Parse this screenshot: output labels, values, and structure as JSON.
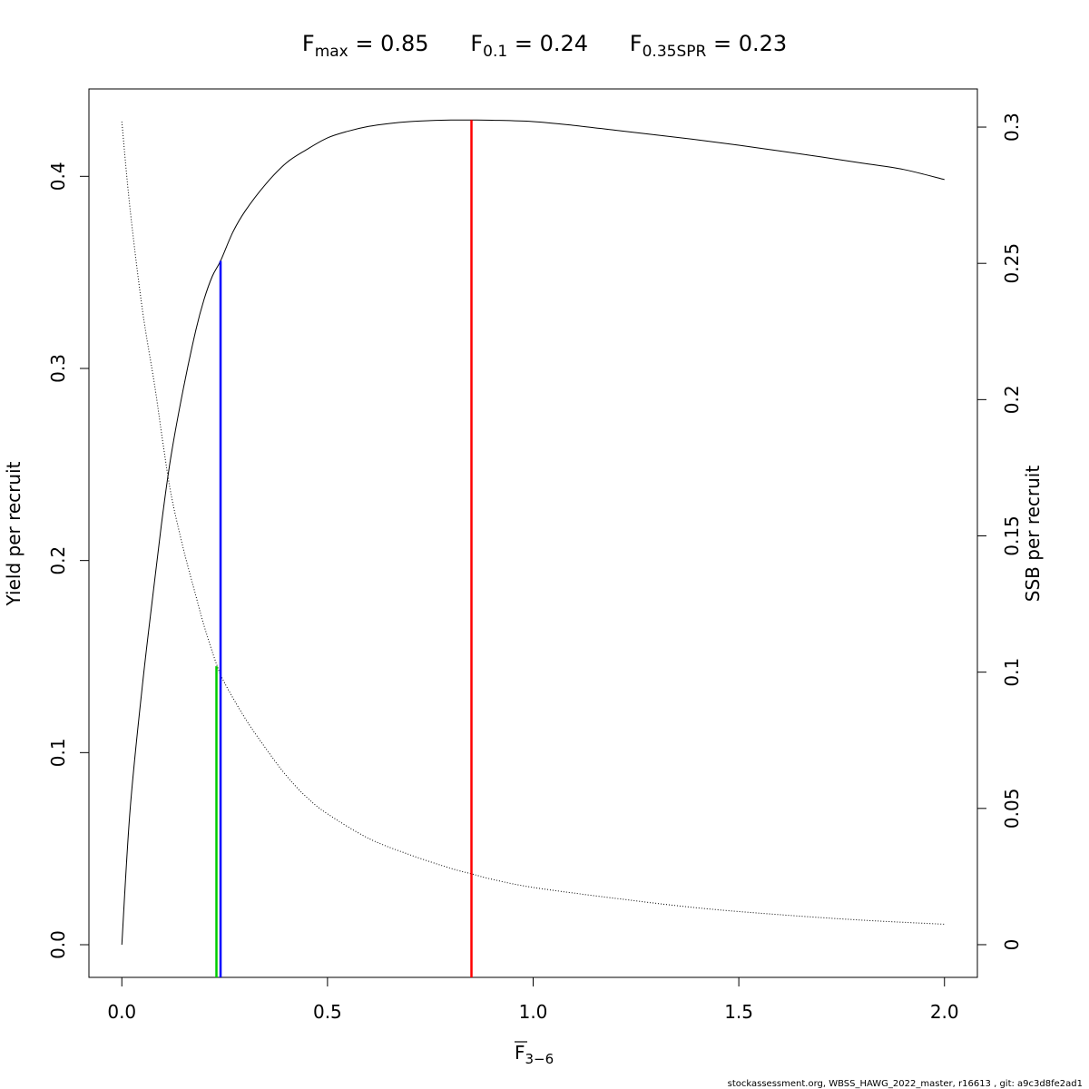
{
  "chart_data": {
    "type": "line",
    "title": {
      "fmax": {
        "symbol": "F",
        "sub": "max",
        "value": "0.85"
      },
      "f01": {
        "symbol": "F",
        "sub": "0.1",
        "value": "0.24"
      },
      "fspr": {
        "symbol": "F",
        "sub": "0.35SPR",
        "value": "0.23"
      }
    },
    "xlabel": {
      "symbol": "F",
      "sub": "3−6"
    },
    "ylabel_left": "Yield per recruit",
    "ylabel_right": "SSB per recruit",
    "xlim": [
      -0.08,
      2.08
    ],
    "ylim_left": [
      -0.017,
      0.4455
    ],
    "ylim_right": [
      -0.012,
      0.314
    ],
    "x_ticks": [
      "0.0",
      "0.5",
      "1.0",
      "1.5",
      "2.0"
    ],
    "y_left_ticks": [
      "0.0",
      "0.1",
      "0.2",
      "0.3",
      "0.4"
    ],
    "y_right_ticks": [
      "0",
      "0.05",
      "0.1",
      "0.15",
      "0.2",
      "0.25",
      "0.3"
    ],
    "grid": false,
    "legend": "none",
    "series": [
      {
        "axis": "left",
        "style": "solid",
        "color": "#000000",
        "x": [
          0.0,
          0.02,
          0.05,
          0.08,
          0.1,
          0.12,
          0.15,
          0.18,
          0.2,
          0.22,
          0.24,
          0.27,
          0.3,
          0.35,
          0.4,
          0.45,
          0.5,
          0.55,
          0.6,
          0.65,
          0.7,
          0.75,
          0.8,
          0.85,
          0.9,
          1.0,
          1.1,
          1.2,
          1.3,
          1.4,
          1.5,
          1.6,
          1.7,
          1.8,
          1.9,
          2.0
        ],
        "y": [
          0.0,
          0.07,
          0.135,
          0.19,
          0.225,
          0.255,
          0.29,
          0.32,
          0.336,
          0.348,
          0.356,
          0.371,
          0.382,
          0.396,
          0.407,
          0.414,
          0.42,
          0.4235,
          0.426,
          0.4275,
          0.4285,
          0.429,
          0.4293,
          0.4293,
          0.4292,
          0.4285,
          0.4265,
          0.424,
          0.4215,
          0.419,
          0.4162,
          0.4132,
          0.4101,
          0.4069,
          0.4036,
          0.3983
        ]
      },
      {
        "axis": "right",
        "style": "dotted",
        "color": "#000000",
        "x": [
          0.0,
          0.02,
          0.05,
          0.08,
          0.1,
          0.12,
          0.15,
          0.18,
          0.2,
          0.23,
          0.25,
          0.3,
          0.35,
          0.4,
          0.45,
          0.5,
          0.6,
          0.7,
          0.8,
          0.85,
          0.9,
          1.0,
          1.2,
          1.4,
          1.6,
          1.8,
          2.0
        ],
        "y": [
          0.302,
          0.27,
          0.233,
          0.205,
          0.184,
          0.165,
          0.145,
          0.128,
          0.117,
          0.103,
          0.096,
          0.083,
          0.072,
          0.062,
          0.054,
          0.048,
          0.039,
          0.033,
          0.028,
          0.026,
          0.024,
          0.021,
          0.017,
          0.0135,
          0.011,
          0.009,
          0.0075
        ]
      }
    ],
    "reference_lines": [
      {
        "name": "Fmax",
        "x": 0.85,
        "y_top": 0.4293,
        "color": "#ff0000"
      },
      {
        "name": "F0.1",
        "x": 0.24,
        "y_top": 0.356,
        "color": "#0000ff"
      },
      {
        "name": "F0.35SPR",
        "x": 0.23,
        "y_top": 0.145,
        "color": "#00cc00"
      }
    ]
  },
  "footer": "stockassessment.org, WBSS_HAWG_2022_master, r16613 , git: a9c3d8fe2ad1"
}
